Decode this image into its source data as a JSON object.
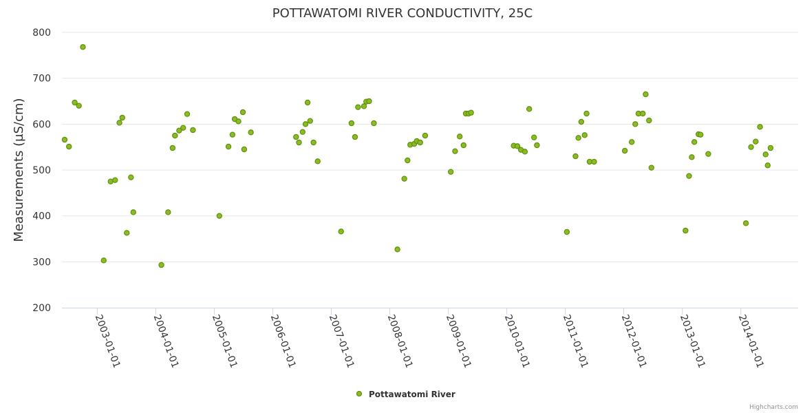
{
  "chart_data": {
    "type": "scatter",
    "title": "POTTAWATOMI RIVER CONDUCTIVITY, 25C",
    "ylabel": "Measurements (µS/cm)",
    "xlabel": "",
    "ylim": [
      200,
      800
    ],
    "yticks": [
      200,
      300,
      400,
      500,
      600,
      700,
      800
    ],
    "xlim": [
      "2002-05-25",
      "2014-12-25"
    ],
    "xticks": [
      "2003-01-01",
      "2004-01-01",
      "2005-01-01",
      "2006-01-01",
      "2007-01-01",
      "2008-01-01",
      "2009-01-01",
      "2010-01-01",
      "2011-01-01",
      "2012-01-01",
      "2013-01-01",
      "2014-01-01"
    ],
    "grid": true,
    "legend_position": "bottom-center",
    "series": [
      {
        "name": "Pottawatomi River",
        "color": "#7cb5ec",
        "marker_fill": "#8bbc21",
        "marker_stroke": "#5e8f0f",
        "points": [
          [
            "2002-06-11",
            566
          ],
          [
            "2002-07-08",
            551
          ],
          [
            "2002-08-13",
            647
          ],
          [
            "2002-09-08",
            640
          ],
          [
            "2002-10-03",
            768
          ],
          [
            "2003-02-10",
            303
          ],
          [
            "2003-03-25",
            475
          ],
          [
            "2003-04-22",
            478
          ],
          [
            "2003-05-19",
            603
          ],
          [
            "2003-06-06",
            614
          ],
          [
            "2003-07-04",
            363
          ],
          [
            "2003-07-30",
            484
          ],
          [
            "2003-08-14",
            408
          ],
          [
            "2004-02-05",
            293
          ],
          [
            "2004-03-18",
            408
          ],
          [
            "2004-04-15",
            548
          ],
          [
            "2004-04-30",
            575
          ],
          [
            "2004-05-26",
            586
          ],
          [
            "2004-06-20",
            592
          ],
          [
            "2004-07-15",
            622
          ],
          [
            "2004-08-20",
            587
          ],
          [
            "2005-02-01",
            400
          ],
          [
            "2005-03-30",
            551
          ],
          [
            "2005-04-24",
            577
          ],
          [
            "2005-05-08",
            611
          ],
          [
            "2005-05-31",
            606
          ],
          [
            "2005-06-28",
            626
          ],
          [
            "2005-07-06",
            545
          ],
          [
            "2005-08-17",
            582
          ],
          [
            "2006-05-26",
            572
          ],
          [
            "2006-06-13",
            560
          ],
          [
            "2006-07-06",
            583
          ],
          [
            "2006-07-24",
            600
          ],
          [
            "2006-08-06",
            647
          ],
          [
            "2006-08-22",
            607
          ],
          [
            "2006-09-12",
            560
          ],
          [
            "2006-10-08",
            519
          ],
          [
            "2007-03-03",
            366
          ],
          [
            "2007-05-07",
            602
          ],
          [
            "2007-05-29",
            572
          ],
          [
            "2007-06-17",
            637
          ],
          [
            "2007-07-24",
            639
          ],
          [
            "2007-08-07",
            649
          ],
          [
            "2007-08-25",
            650
          ],
          [
            "2007-09-24",
            602
          ],
          [
            "2008-02-18",
            327
          ],
          [
            "2008-04-01",
            481
          ],
          [
            "2008-04-21",
            521
          ],
          [
            "2008-05-08",
            555
          ],
          [
            "2008-06-02",
            557
          ],
          [
            "2008-06-18",
            563
          ],
          [
            "2008-07-09",
            560
          ],
          [
            "2008-08-09",
            575
          ],
          [
            "2009-01-16",
            496
          ],
          [
            "2009-02-12",
            541
          ],
          [
            "2009-03-13",
            573
          ],
          [
            "2009-04-06",
            554
          ],
          [
            "2009-04-20",
            623
          ],
          [
            "2009-05-07",
            623
          ],
          [
            "2009-05-23",
            625
          ],
          [
            "2010-02-13",
            553
          ],
          [
            "2010-03-08",
            552
          ],
          [
            "2010-03-30",
            544
          ],
          [
            "2010-04-24",
            540
          ],
          [
            "2010-05-21",
            633
          ],
          [
            "2010-06-20",
            571
          ],
          [
            "2010-07-08",
            554
          ],
          [
            "2011-01-11",
            365
          ],
          [
            "2011-03-06",
            530
          ],
          [
            "2011-03-24",
            570
          ],
          [
            "2011-04-11",
            605
          ],
          [
            "2011-05-02",
            576
          ],
          [
            "2011-05-14",
            623
          ],
          [
            "2011-06-02",
            518
          ],
          [
            "2011-06-30",
            518
          ],
          [
            "2012-01-08",
            542
          ],
          [
            "2012-02-20",
            561
          ],
          [
            "2012-03-13",
            600
          ],
          [
            "2012-04-02",
            623
          ],
          [
            "2012-04-29",
            623
          ],
          [
            "2012-05-17",
            665
          ],
          [
            "2012-06-07",
            608
          ],
          [
            "2012-06-22",
            505
          ],
          [
            "2013-01-21",
            368
          ],
          [
            "2013-02-12",
            487
          ],
          [
            "2013-03-01",
            528
          ],
          [
            "2013-03-17",
            561
          ],
          [
            "2013-04-12",
            578
          ],
          [
            "2013-04-25",
            577
          ],
          [
            "2013-06-12",
            535
          ],
          [
            "2014-02-02",
            384
          ],
          [
            "2014-03-06",
            550
          ],
          [
            "2014-04-04",
            562
          ],
          [
            "2014-05-01",
            594
          ],
          [
            "2014-06-05",
            534
          ],
          [
            "2014-06-18",
            510
          ],
          [
            "2014-07-06",
            548
          ]
        ]
      }
    ]
  },
  "credit": "Highcharts.com"
}
